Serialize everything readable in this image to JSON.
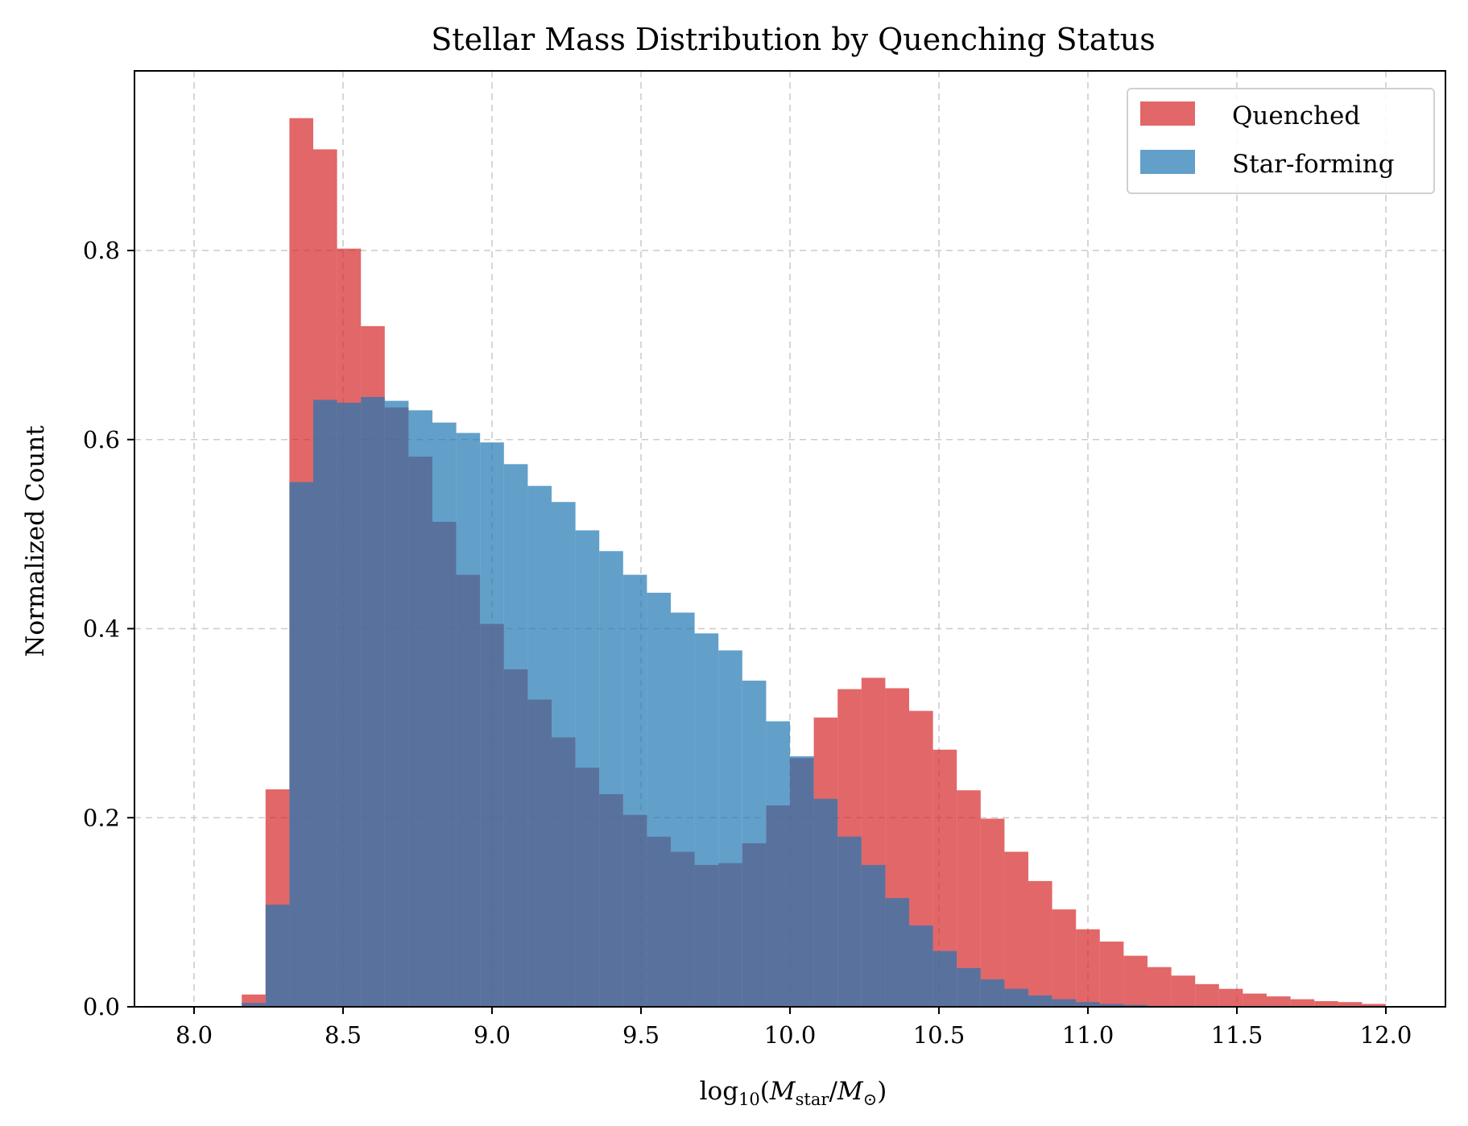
{
  "chart_data": {
    "type": "bar",
    "subtype": "overlaid-histogram",
    "title": "Stellar Mass Distribution by Quenching Status",
    "xlabel": "log10(Mstar/M⊙)",
    "xlabel_parts": {
      "base": "log",
      "sub": "10",
      "open": "(",
      "m1": "M",
      "m1_sub": "star",
      "slash": "/",
      "m2": "M",
      "m2_sub": "⊙",
      "close": ")"
    },
    "ylabel": "Normalized Count",
    "xlim": [
      7.8,
      12.2
    ],
    "ylim": [
      0,
      0.99
    ],
    "xticks": [
      8.0,
      8.5,
      9.0,
      9.5,
      10.0,
      10.5,
      11.0,
      11.5,
      12.0
    ],
    "xtick_labels": [
      "8.0",
      "8.5",
      "9.0",
      "9.5",
      "10.0",
      "10.5",
      "11.0",
      "11.5",
      "12.0"
    ],
    "yticks": [
      0.0,
      0.2,
      0.4,
      0.6,
      0.8
    ],
    "ytick_labels": [
      "0.0",
      "0.2",
      "0.4",
      "0.6",
      "0.8"
    ],
    "grid": true,
    "legend_position": "top-right",
    "bin_edges": [
      8.0,
      8.08,
      8.16,
      8.24,
      8.32,
      8.4,
      8.48,
      8.56,
      8.64,
      8.72,
      8.8,
      8.88,
      8.96,
      9.04,
      9.12,
      9.2,
      9.28,
      9.36,
      9.44,
      9.52,
      9.6,
      9.68,
      9.76,
      9.84,
      9.92,
      10.0,
      10.08,
      10.16,
      10.24,
      10.32,
      10.4,
      10.48,
      10.56,
      10.64,
      10.72,
      10.8,
      10.88,
      10.96,
      11.04,
      11.12,
      11.2,
      11.28,
      11.36,
      11.44,
      11.52,
      11.6,
      11.68,
      11.76,
      11.84,
      11.92,
      12.0
    ],
    "series": [
      {
        "name": "Quenched",
        "color": "#d62728",
        "values": [
          0.0,
          0.0,
          0.013,
          0.23,
          0.94,
          0.907,
          0.802,
          0.72,
          0.634,
          0.582,
          0.513,
          0.457,
          0.405,
          0.357,
          0.325,
          0.285,
          0.253,
          0.225,
          0.203,
          0.18,
          0.164,
          0.15,
          0.152,
          0.173,
          0.213,
          0.263,
          0.306,
          0.336,
          0.348,
          0.337,
          0.313,
          0.272,
          0.229,
          0.199,
          0.164,
          0.133,
          0.103,
          0.082,
          0.069,
          0.054,
          0.042,
          0.033,
          0.024,
          0.019,
          0.014,
          0.011,
          0.008,
          0.006,
          0.005,
          0.003
        ]
      },
      {
        "name": "Star-forming",
        "color": "#1f77b4",
        "values": [
          0.0,
          0.0,
          0.004,
          0.108,
          0.555,
          0.642,
          0.639,
          0.645,
          0.641,
          0.631,
          0.618,
          0.607,
          0.597,
          0.574,
          0.551,
          0.534,
          0.504,
          0.482,
          0.457,
          0.438,
          0.417,
          0.395,
          0.377,
          0.345,
          0.302,
          0.265,
          0.22,
          0.18,
          0.15,
          0.115,
          0.086,
          0.059,
          0.041,
          0.029,
          0.019,
          0.012,
          0.008,
          0.005,
          0.003,
          0.002,
          0.001,
          0.001,
          0.0,
          0.0,
          0.0,
          0.0,
          0.0,
          0.0,
          0.0,
          0.0
        ]
      }
    ]
  }
}
